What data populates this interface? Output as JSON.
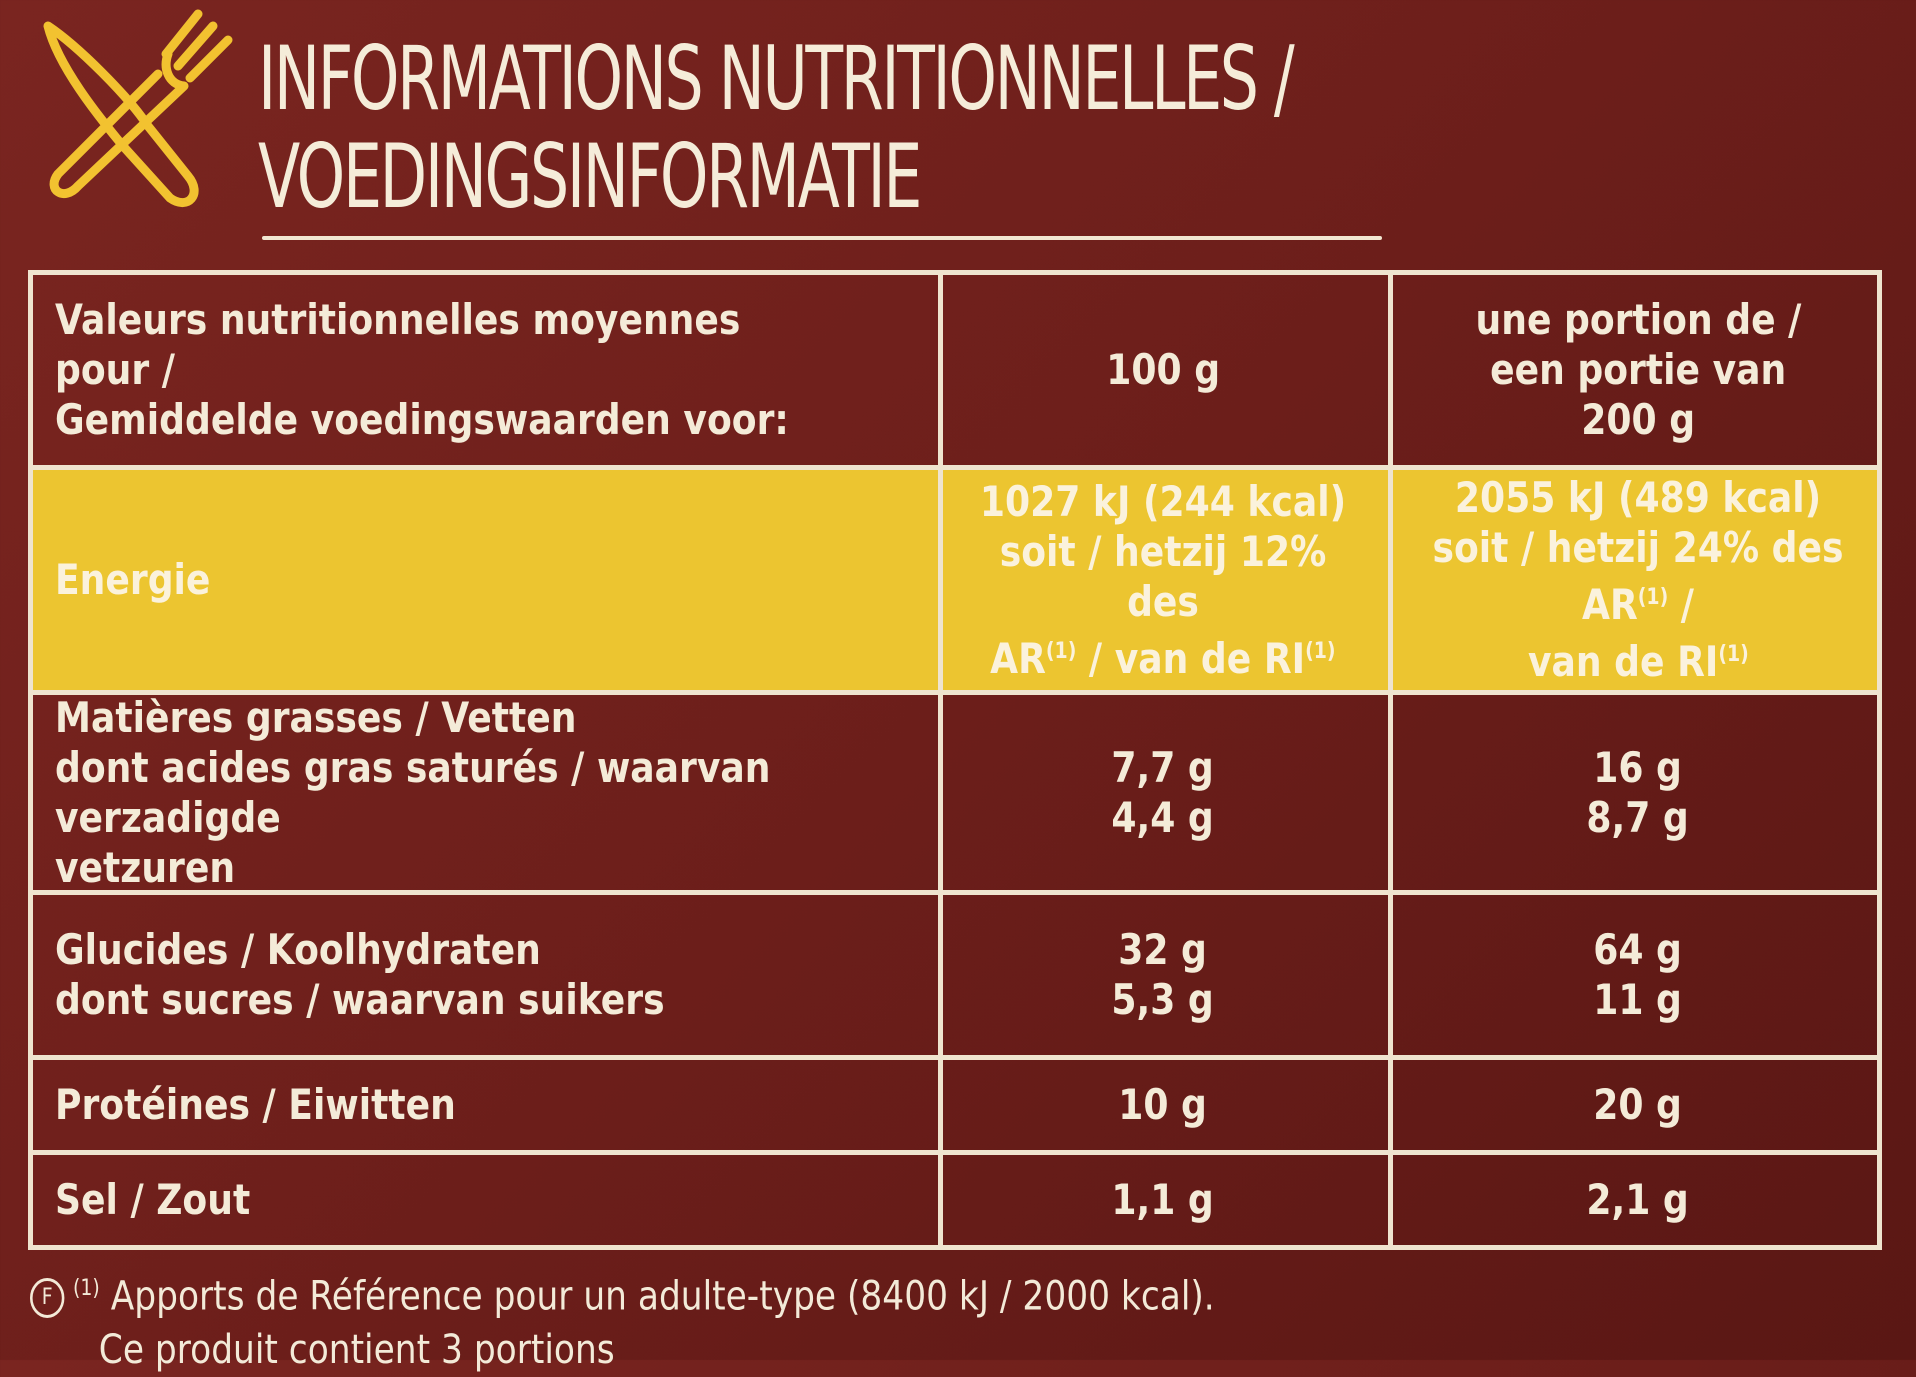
{
  "title": {
    "line1": "INFORMATIONS NUTRITIONNELLES /",
    "line2": "VOEDINGSINFORMATIE"
  },
  "icon": "fork-knife-icon",
  "colors": {
    "background": "#6e1f1b",
    "highlight": "#ecc530",
    "text": "#f3ead8",
    "icon": "#f2c230"
  },
  "table": {
    "header": {
      "label_line1": "Valeurs nutritionnelles moyennes pour /",
      "label_line2": "Gemiddelde voedingswaarden voor:",
      "col1": "100 g",
      "col2_line1": "une portion de /",
      "col2_line2": "een portie van",
      "col2_line3": "200 g"
    },
    "energy": {
      "label": "Energie",
      "v1_line1": "1027 kJ (244 kcal)",
      "v1_line2": "soit / hetzij 12% des",
      "v1_line3": "AR",
      "v1_line3_sup": "(1)",
      "v1_line3_rest": " / van de RI",
      "v1_line3_sup2": "(1)",
      "v2_line1": "2055 kJ (489 kcal)",
      "v2_line2": "soit / hetzij 24% des AR",
      "v2_line2_sup": "(1)",
      "v2_line2_rest": " /",
      "v2_line3": "van de RI",
      "v2_line3_sup": "(1)"
    },
    "fat": {
      "label1": "Matières grasses / Vetten",
      "label2": "dont acides gras saturés / waarvan verzadigde",
      "label3": "vetzuren",
      "v1a": "7,7 g",
      "v1b": "4,4 g",
      "v2a": "16 g",
      "v2b": "8,7 g"
    },
    "carbs": {
      "label1": "Glucides / Koolhydraten",
      "label2": "dont sucres / waarvan suikers",
      "v1a": "32 g",
      "v1b": "5,3 g",
      "v2a": "64 g",
      "v2b": "11 g"
    },
    "protein": {
      "label": "Protéines / Eiwitten",
      "v1": "10 g",
      "v2": "20 g"
    },
    "salt": {
      "label": "Sel / Zout",
      "v1": "1,1 g",
      "v2": "2,1 g"
    }
  },
  "footnote": {
    "badge": "F",
    "sup": "(1)",
    "line1": "Apports de Référence pour un adulte-type (8400 kJ / 2000 kcal).",
    "line2": "Ce produit contient 3 portions"
  }
}
